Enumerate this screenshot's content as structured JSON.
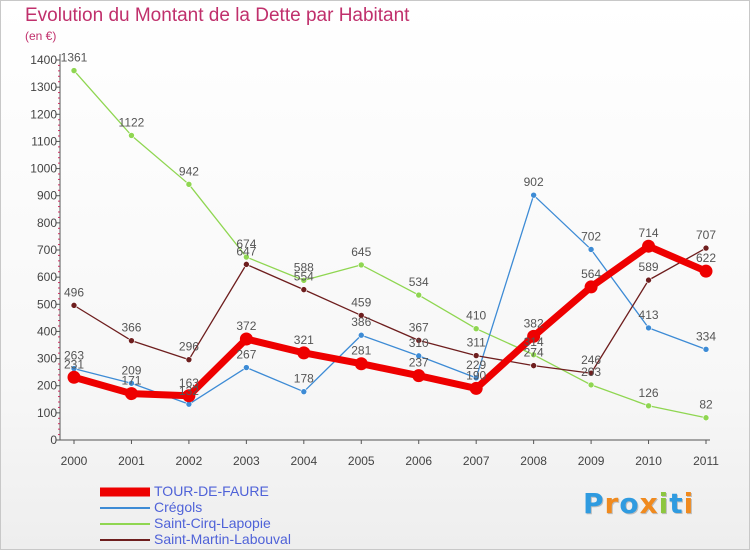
{
  "chart_data": {
    "type": "line",
    "title": "Evolution du Montant de la Dette par Habitant",
    "unit": "(en €)",
    "x": [
      "2000",
      "2001",
      "2002",
      "2003",
      "2004",
      "2005",
      "2006",
      "2007",
      "2008",
      "2009",
      "2010",
      "2011"
    ],
    "ylim": [
      0,
      1400
    ],
    "yticks": [
      0,
      100,
      200,
      300,
      400,
      500,
      600,
      700,
      800,
      900,
      1000,
      1100,
      1200,
      1300,
      1400
    ],
    "grid": false,
    "legend_position": "bottom-left",
    "series": [
      {
        "name": "TOUR-DE-FAURE",
        "color": "#ee0000",
        "emphasis": true,
        "values": [
          231,
          171,
          163,
          372,
          321,
          281,
          237,
          190,
          382,
          564,
          714,
          622
        ]
      },
      {
        "name": "Crégols",
        "color": "#3d8bd5",
        "values": [
          263,
          209,
          132,
          267,
          178,
          386,
          310,
          229,
          902,
          702,
          413,
          334
        ]
      },
      {
        "name": "Saint-Cirq-Lapopie",
        "color": "#8fd651",
        "values": [
          1361,
          1122,
          942,
          674,
          588,
          645,
          534,
          410,
          314,
          203,
          126,
          82
        ]
      },
      {
        "name": "Saint-Martin-Labouval",
        "color": "#6e1e1e",
        "values": [
          496,
          366,
          296,
          647,
          554,
          459,
          367,
          311,
          274,
          246,
          589,
          707
        ]
      }
    ]
  },
  "brand": {
    "letters": [
      "P",
      "r",
      "o",
      "x",
      "i",
      "t",
      "i"
    ],
    "colors": [
      "#2f9be0",
      "#f08a1e",
      "#2f9be0",
      "#f08a1e",
      "#8cc63f",
      "#2f9be0",
      "#f08a1e"
    ]
  }
}
